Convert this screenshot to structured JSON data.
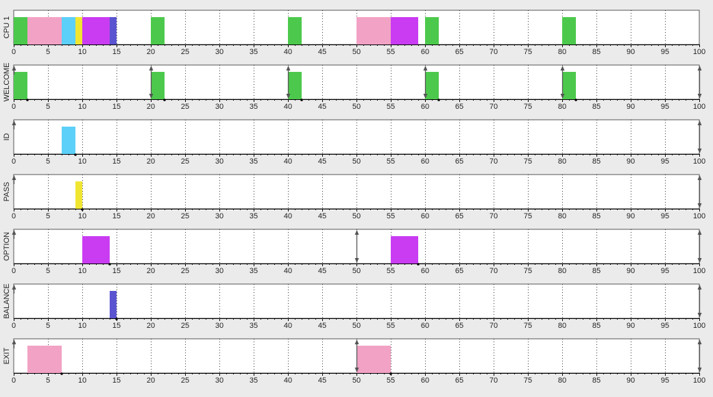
{
  "chart_data": {
    "type": "gantt",
    "x": {
      "min": 0,
      "max": 100,
      "major_step": 5,
      "minor_step": 1
    },
    "grid": "dotted-vertical",
    "colors": {
      "WELCOME": "#4cc94c",
      "EXIT": "#f2a2c4",
      "ID": "#5cd0f8",
      "PASS": "#f0e632",
      "OPTION": "#c93cf2",
      "BALANCE": "#5a54d0"
    },
    "rows": [
      {
        "label": "CPU 1",
        "segments": [
          {
            "task": "WELCOME",
            "start": 0,
            "end": 2
          },
          {
            "task": "EXIT",
            "start": 2,
            "end": 7
          },
          {
            "task": "ID",
            "start": 7,
            "end": 9
          },
          {
            "task": "PASS",
            "start": 9,
            "end": 10
          },
          {
            "task": "OPTION",
            "start": 10,
            "end": 14
          },
          {
            "task": "BALANCE",
            "start": 14,
            "end": 15
          },
          {
            "task": "WELCOME",
            "start": 20,
            "end": 22
          },
          {
            "task": "WELCOME",
            "start": 40,
            "end": 42
          },
          {
            "task": "EXIT",
            "start": 50,
            "end": 55
          },
          {
            "task": "OPTION",
            "start": 55,
            "end": 59
          },
          {
            "task": "WELCOME",
            "start": 60,
            "end": 62
          },
          {
            "task": "WELCOME",
            "start": 80,
            "end": 82
          }
        ],
        "arrivals": [],
        "deadlines": []
      },
      {
        "label": "WELCOME",
        "segments": [
          {
            "task": "WELCOME",
            "start": 0,
            "end": 2
          },
          {
            "task": "WELCOME",
            "start": 20,
            "end": 22
          },
          {
            "task": "WELCOME",
            "start": 40,
            "end": 42
          },
          {
            "task": "WELCOME",
            "start": 60,
            "end": 62
          },
          {
            "task": "WELCOME",
            "start": 80,
            "end": 82
          }
        ],
        "arrivals": [
          0,
          20,
          40,
          60,
          80,
          100
        ],
        "deadlines": [
          20,
          40,
          60,
          80,
          100
        ],
        "completions": [
          2,
          22,
          42,
          62,
          82
        ]
      },
      {
        "label": "ID",
        "segments": [
          {
            "task": "ID",
            "start": 7,
            "end": 9
          }
        ],
        "arrivals": [
          0,
          100
        ],
        "deadlines": [
          100
        ],
        "completions": [
          9
        ]
      },
      {
        "label": "PASS",
        "segments": [
          {
            "task": "PASS",
            "start": 9,
            "end": 10
          }
        ],
        "arrivals": [
          0,
          100
        ],
        "deadlines": [
          100
        ],
        "completions": [
          10
        ]
      },
      {
        "label": "OPTION",
        "segments": [
          {
            "task": "OPTION",
            "start": 10,
            "end": 14
          },
          {
            "task": "OPTION",
            "start": 55,
            "end": 59
          }
        ],
        "arrivals": [
          0,
          50,
          100
        ],
        "deadlines": [
          50,
          100
        ],
        "completions": [
          14,
          59
        ]
      },
      {
        "label": "BALANCE",
        "segments": [
          {
            "task": "BALANCE",
            "start": 14,
            "end": 15
          }
        ],
        "arrivals": [
          0,
          100
        ],
        "deadlines": [
          100
        ],
        "completions": [
          15
        ]
      },
      {
        "label": "EXIT",
        "segments": [
          {
            "task": "EXIT",
            "start": 2,
            "end": 7
          },
          {
            "task": "EXIT",
            "start": 50,
            "end": 55
          }
        ],
        "arrivals": [
          0,
          50,
          100
        ],
        "deadlines": [
          50,
          100
        ],
        "completions": [
          7,
          55
        ]
      }
    ]
  }
}
